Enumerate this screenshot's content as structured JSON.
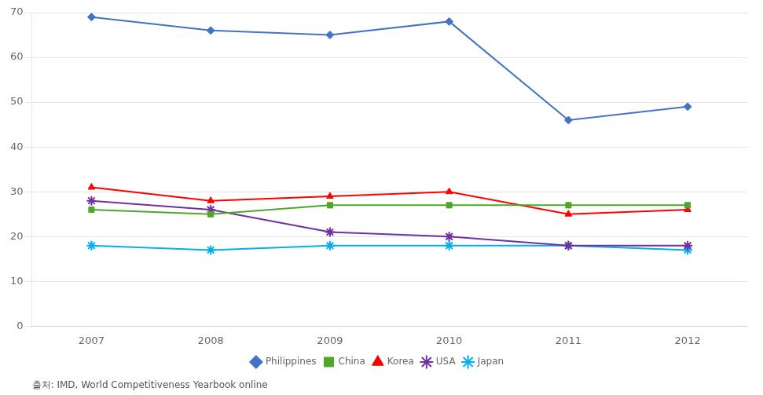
{
  "chart_data": {
    "type": "line",
    "categories": [
      "2007",
      "2008",
      "2009",
      "2010",
      "2011",
      "2012"
    ],
    "series": [
      {
        "name": "Philippines",
        "color": "#4472C4",
        "marker": "diamond",
        "values": [
          69,
          66,
          65,
          68,
          46,
          49
        ]
      },
      {
        "name": "China",
        "color": "#4EA72A",
        "marker": "square",
        "values": [
          26,
          25,
          27,
          27,
          27,
          27
        ]
      },
      {
        "name": "Korea",
        "color": "#FF0000",
        "marker": "triangle",
        "values": [
          31,
          28,
          29,
          30,
          25,
          26
        ]
      },
      {
        "name": "USA",
        "color": "#7030A0",
        "marker": "star",
        "values": [
          28,
          26,
          21,
          20,
          18,
          18
        ]
      },
      {
        "name": "Japan",
        "color": "#00B0F0",
        "marker": "star",
        "values": [
          18,
          17,
          18,
          18,
          18,
          17
        ]
      }
    ],
    "ylim": [
      0,
      70
    ],
    "yticks": [
      0,
      10,
      20,
      30,
      40,
      50,
      60,
      70
    ],
    "grid": "y",
    "legend": "lower center",
    "annotations": [
      "출처: IMD, World Competitiveness Yearbook online"
    ]
  }
}
